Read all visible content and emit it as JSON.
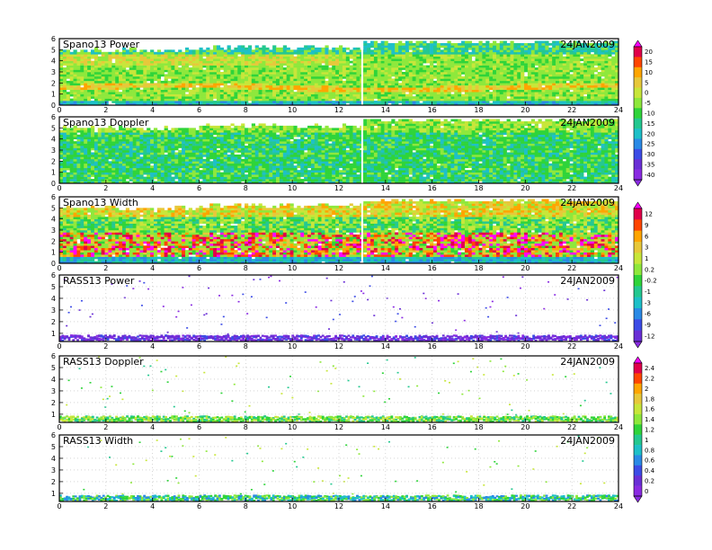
{
  "chart_data": [
    {
      "type": "heatmap",
      "title": "Spano13 Power",
      "date": "24JAN2009",
      "x_ticks": [
        "0",
        "2",
        "4",
        "6",
        "8",
        "10",
        "12",
        "14",
        "16",
        "18",
        "20",
        "22",
        "24"
      ],
      "y_ticks": [
        "0",
        "1",
        "2",
        "3",
        "4",
        "5",
        "6"
      ],
      "xlim": [
        0,
        24
      ],
      "ylim": [
        0,
        6
      ],
      "colorbar": [
        "20",
        "15",
        "10",
        "5",
        "0",
        "-5",
        "-10",
        "-15",
        "-20",
        "-25",
        "-30",
        "-35",
        "-40"
      ]
    },
    {
      "type": "heatmap",
      "title": "Spano13 Doppler",
      "date": "24JAN2009",
      "x_ticks": [
        "0",
        "2",
        "4",
        "6",
        "8",
        "10",
        "12",
        "14",
        "16",
        "18",
        "20",
        "22",
        "24"
      ],
      "y_ticks": [
        "0",
        "1",
        "2",
        "3",
        "4",
        "5",
        "6"
      ],
      "xlim": [
        0,
        24
      ],
      "ylim": [
        0,
        6
      ]
    },
    {
      "type": "heatmap",
      "title": "Spano13 Width",
      "date": "24JAN2009",
      "x_ticks": [
        "0",
        "2",
        "4",
        "6",
        "8",
        "10",
        "12",
        "14",
        "16",
        "18",
        "20",
        "22",
        "24"
      ],
      "y_ticks": [
        "0",
        "1",
        "2",
        "3",
        "4",
        "5",
        "6"
      ],
      "xlim": [
        0,
        24
      ],
      "ylim": [
        0,
        6
      ],
      "colorbar": [
        "12",
        "9",
        "6",
        "3",
        "1",
        "0.2",
        "-0.2",
        "-1",
        "-3",
        "-6",
        "-9",
        "-12"
      ]
    },
    {
      "type": "heatmap",
      "title": "RASS13 Power",
      "date": "24JAN2009",
      "x_ticks": [
        "0",
        "2",
        "4",
        "6",
        "8",
        "10",
        "12",
        "14",
        "16",
        "18",
        "20",
        "22",
        "24"
      ],
      "y_ticks": [
        "1",
        "2",
        "3",
        "4",
        "5",
        "6"
      ],
      "xlim": [
        0,
        24
      ],
      "ylim": [
        0.3,
        6
      ]
    },
    {
      "type": "heatmap",
      "title": "RASS13 Doppler",
      "date": "24JAN2009",
      "x_ticks": [
        "0",
        "2",
        "4",
        "6",
        "8",
        "10",
        "12",
        "14",
        "16",
        "18",
        "20",
        "22",
        "24"
      ],
      "y_ticks": [
        "1",
        "2",
        "3",
        "4",
        "5",
        "6"
      ],
      "xlim": [
        0,
        24
      ],
      "ylim": [
        0.3,
        6
      ],
      "colorbar": [
        "2.4",
        "2.2",
        "2",
        "1.8",
        "1.6",
        "1.4",
        "1.2",
        "1",
        "0.8",
        "0.6",
        "0.4",
        "0.2",
        "0"
      ]
    },
    {
      "type": "heatmap",
      "title": "RASS13 Width",
      "date": "24JAN2009",
      "x_ticks": [
        "0",
        "2",
        "4",
        "6",
        "8",
        "10",
        "12",
        "14",
        "16",
        "18",
        "20",
        "22",
        "24"
      ],
      "y_ticks": [
        "1",
        "2",
        "3",
        "4",
        "5",
        "6"
      ],
      "xlim": [
        0,
        24
      ],
      "ylim": [
        0.3,
        6
      ]
    }
  ],
  "colors": {
    "scale": [
      "#ff00ff",
      "#e0004a",
      "#ff4500",
      "#ffa500",
      "#e7c83a",
      "#c8e63a",
      "#8ee83c",
      "#2fd43a",
      "#24c890",
      "#1ec0c8",
      "#2a8ae6",
      "#3c4ce6",
      "#6a2fd6",
      "#8a2be2"
    ]
  }
}
